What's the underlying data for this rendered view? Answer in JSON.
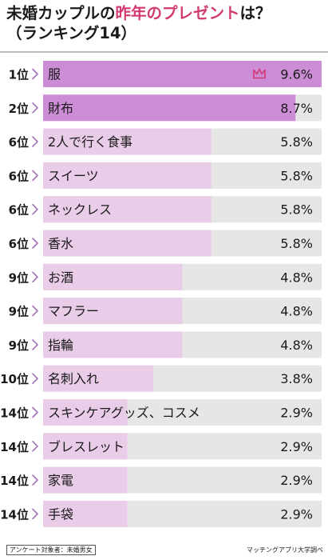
{
  "title": {
    "line1_pre": "未婚カップルの",
    "line1_accent": "昨年のプレゼント",
    "line1_post": "は？",
    "line2": "（ランキング14）"
  },
  "footer": {
    "survey_target": "アンケート対象者：未婚男女",
    "source": "マッチングアプリ大学調べ"
  },
  "colors": {
    "bar_top": "#cc8dd6",
    "bar_other": "#e8cce8",
    "track": "#e6e6e6",
    "accent": "#d23a72",
    "chevron": "#a070b8"
  },
  "chart_data": {
    "type": "bar",
    "orientation": "horizontal",
    "title": "未婚カップルの昨年のプレゼントは？（ランキング14）",
    "xlim": [
      0,
      9.6
    ],
    "unit": "%",
    "items": [
      {
        "rank": "1位",
        "label": "服",
        "value": 9.6,
        "value_label": "9.6%",
        "crown": true
      },
      {
        "rank": "2位",
        "label": "財布",
        "value": 8.7,
        "value_label": "8.7%"
      },
      {
        "rank": "6位",
        "label": "2人で行く食事",
        "value": 5.8,
        "value_label": "5.8%"
      },
      {
        "rank": "6位",
        "label": "スイーツ",
        "value": 5.8,
        "value_label": "5.8%"
      },
      {
        "rank": "6位",
        "label": "ネックレス",
        "value": 5.8,
        "value_label": "5.8%"
      },
      {
        "rank": "6位",
        "label": "香水",
        "value": 5.8,
        "value_label": "5.8%"
      },
      {
        "rank": "9位",
        "label": "お酒",
        "value": 4.8,
        "value_label": "4.8%"
      },
      {
        "rank": "9位",
        "label": "マフラー",
        "value": 4.8,
        "value_label": "4.8%"
      },
      {
        "rank": "9位",
        "label": "指輪",
        "value": 4.8,
        "value_label": "4.8%"
      },
      {
        "rank": "10位",
        "label": "名刺入れ",
        "value": 3.8,
        "value_label": "3.8%"
      },
      {
        "rank": "14位",
        "label": "スキンケアグッズ、コスメ",
        "value": 2.9,
        "value_label": "2.9%"
      },
      {
        "rank": "14位",
        "label": "ブレスレット",
        "value": 2.9,
        "value_label": "2.9%"
      },
      {
        "rank": "14位",
        "label": "家電",
        "value": 2.9,
        "value_label": "2.9%"
      },
      {
        "rank": "14位",
        "label": "手袋",
        "value": 2.9,
        "value_label": "2.9%"
      }
    ]
  }
}
